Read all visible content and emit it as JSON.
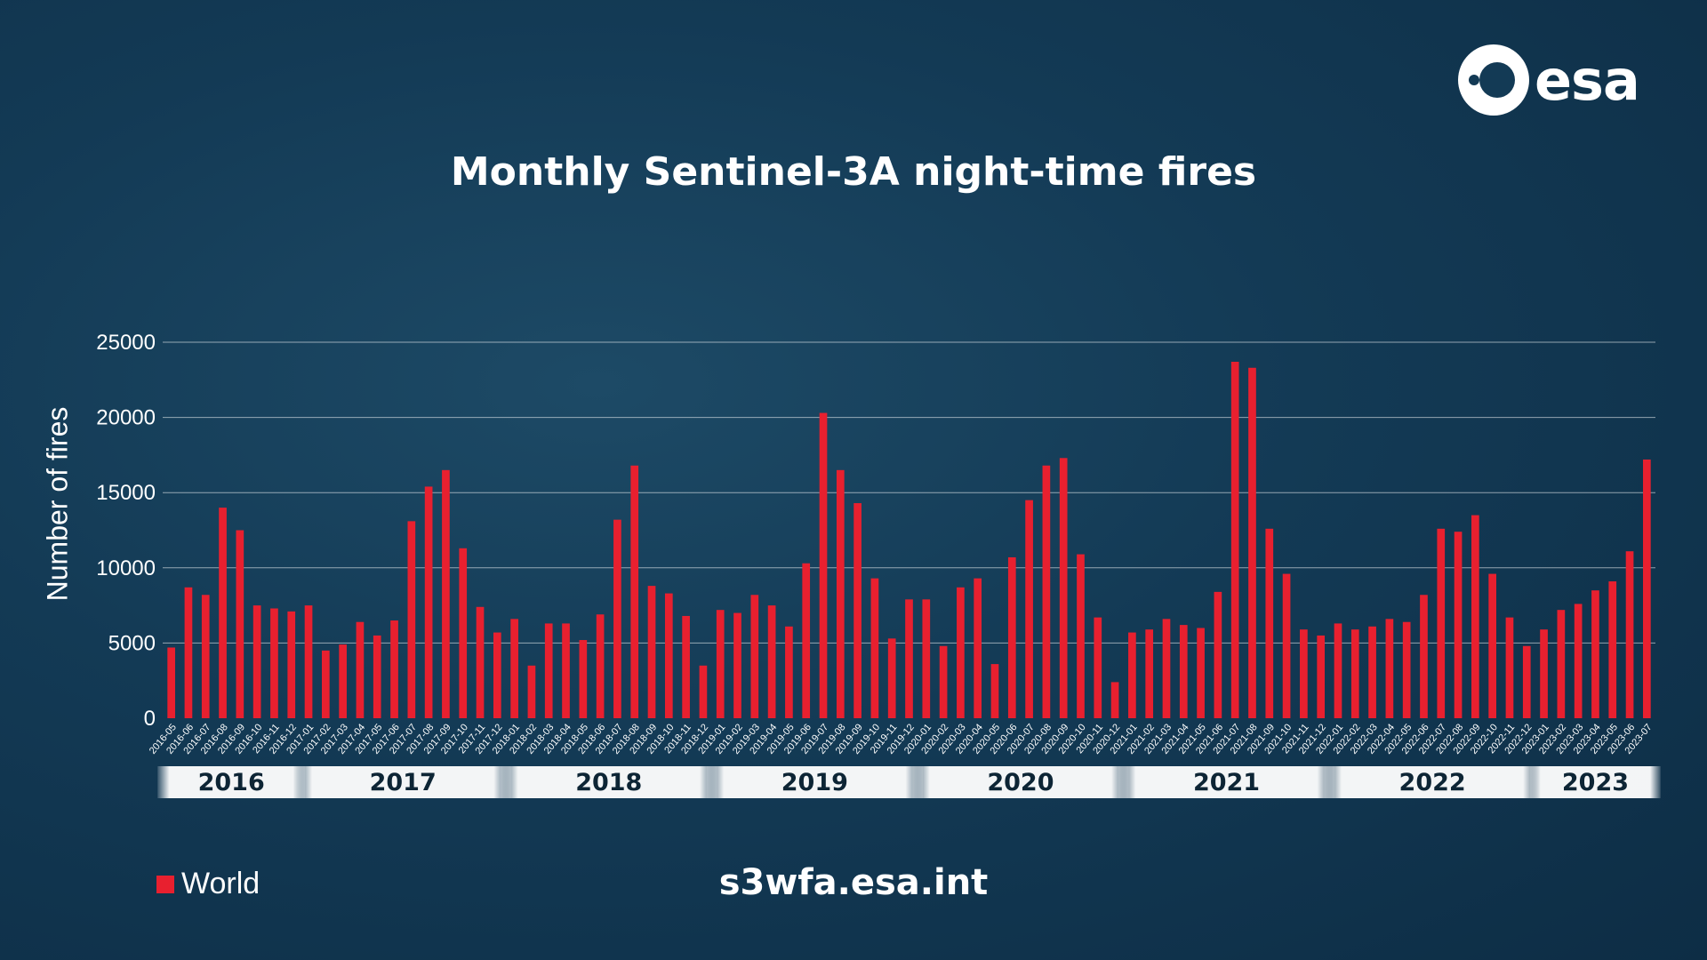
{
  "title": "Monthly Sentinel-3A night-time fires",
  "logo_text": "esa",
  "url": "s3wfa.esa.int",
  "chart_data": {
    "type": "bar",
    "title": "Monthly Sentinel-3A night-time fires",
    "xlabel": "",
    "ylabel": "Number of fires",
    "ylim": [
      0,
      25000
    ],
    "yticks": [
      0,
      5000,
      10000,
      15000,
      20000,
      25000
    ],
    "grid": true,
    "legend_position": "bottom-left",
    "bar_color": "#e8202f",
    "categories": [
      "2016-05",
      "2016-06",
      "2016-07",
      "2016-08",
      "2016-09",
      "2016-10",
      "2016-11",
      "2016-12",
      "2017-01",
      "2017-02",
      "2017-03",
      "2017-04",
      "2017-05",
      "2017-06",
      "2017-07",
      "2017-08",
      "2017-09",
      "2017-10",
      "2017-11",
      "2017-12",
      "2018-01",
      "2018-02",
      "2018-03",
      "2018-04",
      "2018-05",
      "2018-06",
      "2018-07",
      "2018-08",
      "2018-09",
      "2018-10",
      "2018-11",
      "2018-12",
      "2019-01",
      "2019-02",
      "2019-03",
      "2019-04",
      "2019-05",
      "2019-06",
      "2019-07",
      "2019-08",
      "2019-09",
      "2019-10",
      "2019-11",
      "2019-12",
      "2020-01",
      "2020-02",
      "2020-03",
      "2020-04",
      "2020-05",
      "2020-06",
      "2020-07",
      "2020-08",
      "2020-09",
      "2020-10",
      "2020-11",
      "2020-12",
      "2021-01",
      "2021-02",
      "2021-03",
      "2021-04",
      "2021-05",
      "2021-06",
      "2021-07",
      "2021-08",
      "2021-09",
      "2021-10",
      "2021-11",
      "2021-12",
      "2022-01",
      "2022-02",
      "2022-03",
      "2022-04",
      "2022-05",
      "2022-06",
      "2022-07",
      "2022-08",
      "2022-09",
      "2022-10",
      "2022-11",
      "2022-12",
      "2023-01",
      "2023-02",
      "2023-03",
      "2023-04",
      "2023-05",
      "2023-06",
      "2023-07"
    ],
    "series": [
      {
        "name": "World",
        "values": [
          4700,
          8700,
          8200,
          14000,
          12500,
          7500,
          7300,
          7100,
          7500,
          4500,
          4900,
          6400,
          5500,
          6500,
          13100,
          15400,
          16500,
          11300,
          7400,
          5700,
          6600,
          3500,
          6300,
          6300,
          5200,
          6900,
          13200,
          16800,
          8800,
          8300,
          6800,
          3500,
          7200,
          7000,
          8200,
          7500,
          6100,
          10300,
          20300,
          16500,
          14300,
          9300,
          5300,
          7900,
          7900,
          4800,
          8700,
          9300,
          3600,
          10700,
          14500,
          16800,
          17300,
          10900,
          6700,
          2400,
          5700,
          5900,
          6600,
          6200,
          6000,
          8400,
          23700,
          23300,
          12600,
          9600,
          5900,
          5500,
          6300,
          5900,
          6100,
          6600,
          6400,
          8200,
          12600,
          12400,
          13500,
          9600,
          6700,
          4800,
          5900,
          7200,
          7600,
          8500,
          9100,
          11100,
          17200
        ]
      }
    ],
    "year_bands": [
      {
        "label": "2016",
        "start": 0,
        "end": 7
      },
      {
        "label": "2017",
        "start": 8,
        "end": 19
      },
      {
        "label": "2018",
        "start": 20,
        "end": 31
      },
      {
        "label": "2019",
        "start": 32,
        "end": 43
      },
      {
        "label": "2020",
        "start": 44,
        "end": 55
      },
      {
        "label": "2021",
        "start": 56,
        "end": 67
      },
      {
        "label": "2022",
        "start": 68,
        "end": 79
      },
      {
        "label": "2023",
        "start": 80,
        "end": 86
      }
    ]
  },
  "legend": {
    "label": "World"
  }
}
